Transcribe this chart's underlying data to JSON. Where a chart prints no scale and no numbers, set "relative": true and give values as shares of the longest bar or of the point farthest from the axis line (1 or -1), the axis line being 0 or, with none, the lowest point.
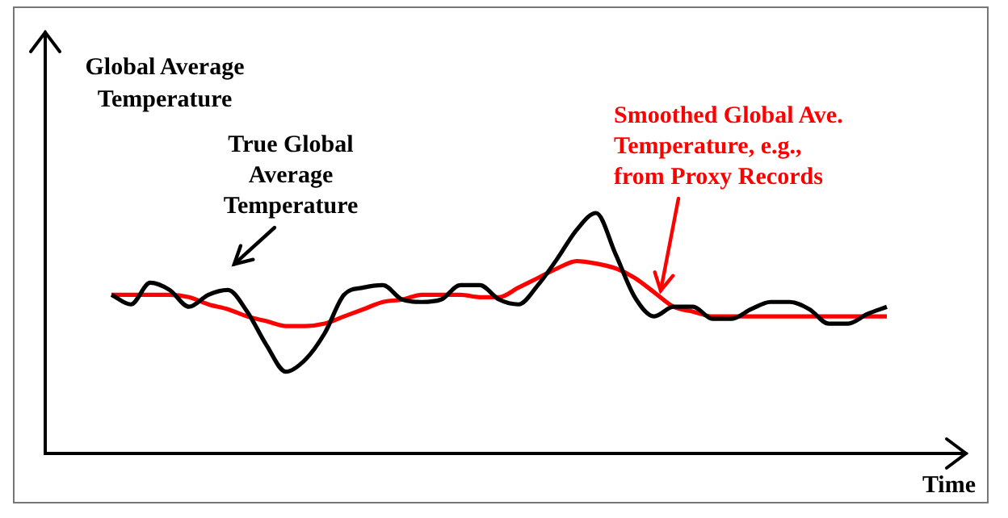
{
  "chart_data": {
    "type": "line",
    "relative": true,
    "ylabel": "Global Average Temperature",
    "xlabel": "Time",
    "categories": [
      null,
      null,
      null,
      null,
      null,
      null,
      null,
      null,
      null,
      null,
      null,
      null,
      null,
      null,
      null,
      null,
      null,
      null,
      null,
      null,
      null,
      null,
      null,
      null,
      null,
      null,
      null,
      null,
      null,
      null,
      null,
      null,
      null,
      null,
      null,
      null,
      null,
      null,
      null,
      null,
      null
    ],
    "series": [
      {
        "name": "True Global Average Temperature",
        "color": "#000000",
        "values": [
          0.66,
          0.62,
          0.71,
          0.68,
          0.61,
          0.66,
          0.68,
          0.59,
          0.45,
          0.34,
          0.39,
          0.5,
          0.66,
          0.69,
          0.7,
          0.64,
          0.63,
          0.64,
          0.7,
          0.7,
          0.64,
          0.62,
          0.7,
          0.81,
          0.93,
          1.0,
          0.83,
          0.65,
          0.57,
          0.61,
          0.61,
          0.56,
          0.56,
          0.6,
          0.63,
          0.63,
          0.6,
          0.54,
          0.54,
          0.58,
          0.61
        ]
      },
      {
        "name": "Smoothed Global Ave. Temperature, e.g., from Proxy Records",
        "color": "#ff0000",
        "values": [
          0.66,
          0.66,
          0.66,
          0.66,
          0.65,
          0.62,
          0.6,
          0.57,
          0.55,
          0.53,
          0.53,
          0.54,
          0.57,
          0.6,
          0.63,
          0.64,
          0.66,
          0.66,
          0.66,
          0.65,
          0.65,
          0.69,
          0.73,
          0.77,
          0.8,
          0.79,
          0.77,
          0.73,
          0.67,
          0.61,
          0.59,
          0.57,
          0.57,
          0.57,
          0.57,
          0.57,
          0.57,
          0.57,
          0.57,
          0.57,
          0.57
        ]
      }
    ]
  }
}
